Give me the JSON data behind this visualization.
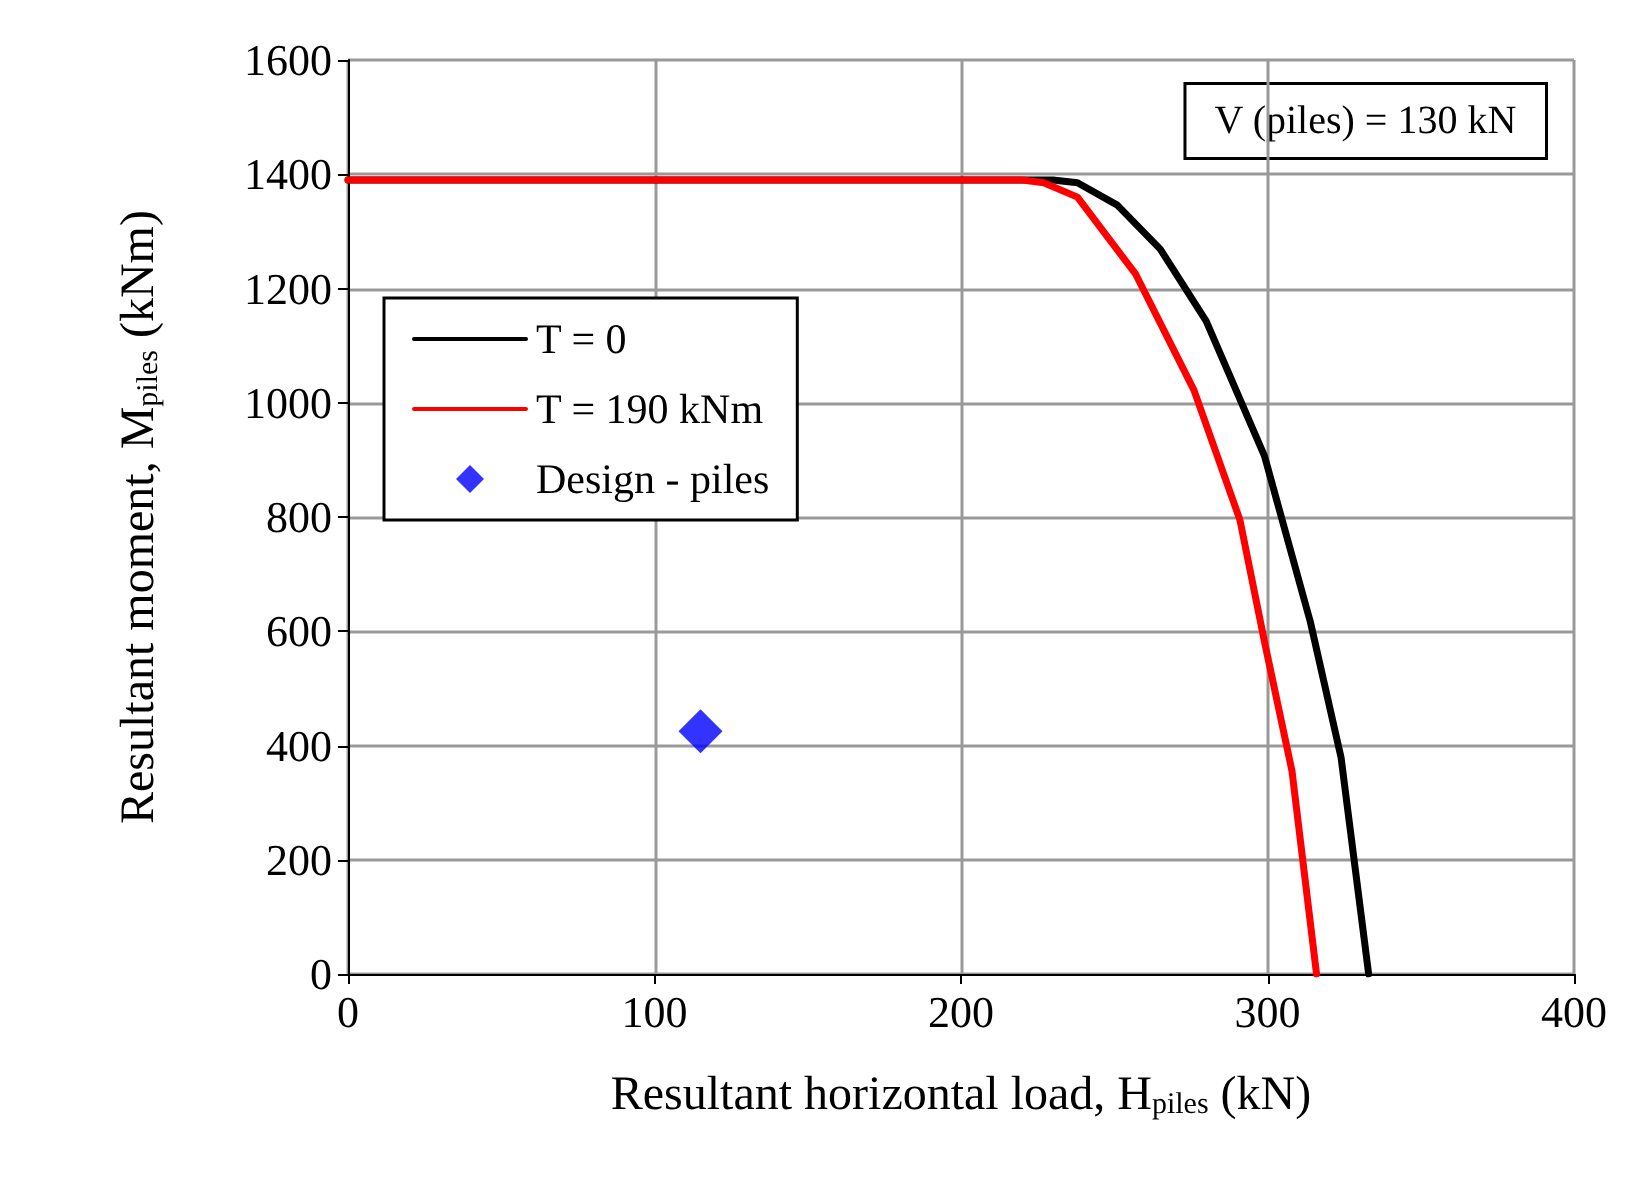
{
  "chart_data": {
    "type": "line",
    "xlabel": "Resultant horizontal load, H$_{piles}$ (kN)",
    "ylabel": "Resultant moment, M$_{piles}$ (kNm)",
    "xlim": [
      0,
      400
    ],
    "xticks": [
      0,
      100,
      200,
      300,
      400
    ],
    "ylim": [
      0,
      1600
    ],
    "yticks": [
      0,
      200,
      400,
      600,
      800,
      1000,
      1200,
      1400,
      1600
    ],
    "grid": true,
    "legend": "left",
    "annotations": [
      "V (piles) = 130 kN"
    ],
    "series": [
      {
        "name": "T = 0",
        "color": "#000000",
        "marker": "none",
        "x": [
          0,
          230,
          238,
          251,
          265,
          280,
          299,
          314,
          324,
          333
        ],
        "values": [
          1390,
          1390,
          1385,
          1346,
          1269,
          1143,
          907,
          616,
          379,
          0
        ]
      },
      {
        "name": "T = 190 kNm",
        "color": "#ff0000",
        "marker": "none",
        "x": [
          0,
          220,
          227,
          238,
          257,
          276,
          291,
          299,
          308,
          316
        ],
        "values": [
          1390,
          1390,
          1385,
          1360,
          1225,
          1022,
          795,
          582,
          355,
          0
        ]
      },
      {
        "name": "Design - piles",
        "type": "scatter",
        "color": "#0000ff",
        "marker": "diamond",
        "x": [
          115
        ],
        "values": [
          425
        ]
      }
    ]
  }
}
